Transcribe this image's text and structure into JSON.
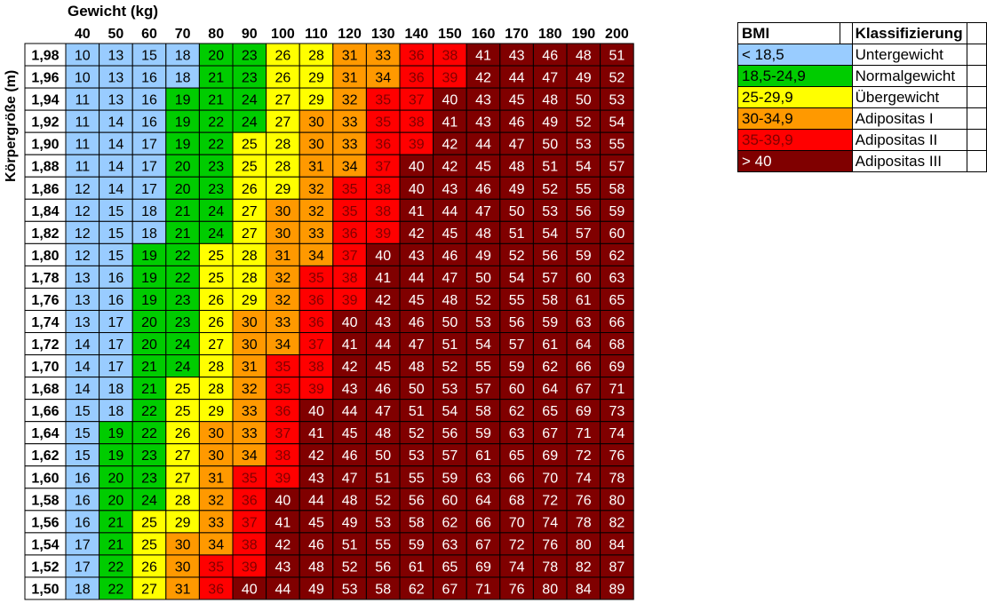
{
  "chart_data": {
    "type": "heatmap",
    "xlabel": "Gewicht (kg)",
    "ylabel": "Körpergröße (m)",
    "x": [
      40,
      50,
      60,
      70,
      80,
      90,
      100,
      110,
      120,
      130,
      140,
      150,
      160,
      170,
      180,
      190,
      200
    ],
    "y": [
      "1,98",
      "1,96",
      "1,94",
      "1,92",
      "1,90",
      "1,88",
      "1,86",
      "1,84",
      "1,82",
      "1,80",
      "1,78",
      "1,76",
      "1,74",
      "1,72",
      "1,70",
      "1,68",
      "1,66",
      "1,64",
      "1,62",
      "1,60",
      "1,58",
      "1,56",
      "1,54",
      "1,52",
      "1,50"
    ],
    "values": [
      [
        10,
        13,
        15,
        18,
        20,
        23,
        26,
        28,
        31,
        33,
        36,
        38,
        41,
        43,
        46,
        48,
        51
      ],
      [
        10,
        13,
        16,
        18,
        21,
        23,
        26,
        29,
        31,
        34,
        36,
        39,
        42,
        44,
        47,
        49,
        52
      ],
      [
        11,
        13,
        16,
        19,
        21,
        24,
        27,
        29,
        32,
        35,
        37,
        40,
        43,
        45,
        48,
        50,
        53
      ],
      [
        11,
        14,
        16,
        19,
        22,
        24,
        27,
        30,
        33,
        35,
        38,
        41,
        43,
        46,
        49,
        52,
        54
      ],
      [
        11,
        14,
        17,
        19,
        22,
        25,
        28,
        30,
        33,
        36,
        39,
        42,
        44,
        47,
        50,
        53,
        55
      ],
      [
        11,
        14,
        17,
        20,
        23,
        25,
        28,
        31,
        34,
        37,
        40,
        42,
        45,
        48,
        51,
        54,
        57
      ],
      [
        12,
        14,
        17,
        20,
        23,
        26,
        29,
        32,
        35,
        38,
        40,
        43,
        46,
        49,
        52,
        55,
        58
      ],
      [
        12,
        15,
        18,
        21,
        24,
        27,
        30,
        32,
        35,
        38,
        41,
        44,
        47,
        50,
        53,
        56,
        59
      ],
      [
        12,
        15,
        18,
        21,
        24,
        27,
        30,
        33,
        36,
        39,
        42,
        45,
        48,
        51,
        54,
        57,
        60
      ],
      [
        12,
        15,
        19,
        22,
        25,
        28,
        31,
        34,
        37,
        40,
        43,
        46,
        49,
        52,
        56,
        59,
        62
      ],
      [
        13,
        16,
        19,
        22,
        25,
        28,
        32,
        35,
        38,
        41,
        44,
        47,
        50,
        54,
        57,
        60,
        63
      ],
      [
        13,
        16,
        19,
        23,
        26,
        29,
        32,
        36,
        39,
        42,
        45,
        48,
        52,
        55,
        58,
        61,
        65
      ],
      [
        13,
        17,
        20,
        23,
        26,
        30,
        33,
        36,
        40,
        43,
        46,
        50,
        53,
        56,
        59,
        63,
        66
      ],
      [
        14,
        17,
        20,
        24,
        27,
        30,
        34,
        37,
        41,
        44,
        47,
        51,
        54,
        57,
        61,
        64,
        68
      ],
      [
        14,
        17,
        21,
        24,
        28,
        31,
        35,
        38,
        42,
        45,
        48,
        52,
        55,
        59,
        62,
        66,
        69
      ],
      [
        14,
        18,
        21,
        25,
        28,
        32,
        35,
        39,
        43,
        46,
        50,
        53,
        57,
        60,
        64,
        67,
        71
      ],
      [
        15,
        18,
        22,
        25,
        29,
        33,
        36,
        40,
        44,
        47,
        51,
        54,
        58,
        62,
        65,
        69,
        73
      ],
      [
        15,
        19,
        22,
        26,
        30,
        33,
        37,
        41,
        45,
        48,
        52,
        56,
        59,
        63,
        67,
        71,
        74
      ],
      [
        15,
        19,
        23,
        27,
        30,
        34,
        38,
        42,
        46,
        50,
        53,
        57,
        61,
        65,
        69,
        72,
        76
      ],
      [
        16,
        20,
        23,
        27,
        31,
        35,
        39,
        43,
        47,
        51,
        55,
        59,
        63,
        66,
        70,
        74,
        78
      ],
      [
        16,
        20,
        24,
        28,
        32,
        36,
        40,
        44,
        48,
        52,
        56,
        60,
        64,
        68,
        72,
        76,
        80
      ],
      [
        16,
        21,
        25,
        29,
        33,
        37,
        41,
        45,
        49,
        53,
        58,
        62,
        66,
        70,
        74,
        78,
        82
      ],
      [
        17,
        21,
        25,
        30,
        34,
        38,
        42,
        46,
        51,
        55,
        59,
        63,
        67,
        72,
        76,
        80,
        84
      ],
      [
        17,
        22,
        26,
        30,
        35,
        39,
        43,
        48,
        52,
        56,
        61,
        65,
        69,
        74,
        78,
        82,
        87
      ],
      [
        18,
        22,
        27,
        31,
        36,
        40,
        44,
        49,
        53,
        58,
        62,
        67,
        71,
        76,
        80,
        84,
        89
      ]
    ],
    "legend": {
      "headers": [
        "BMI",
        "Klassifizierung"
      ],
      "classes": [
        {
          "range": "< 18,5",
          "label": "Untergewicht",
          "color": "#99CCFF",
          "text_color": "#000000",
          "max": 18.5
        },
        {
          "range": "18,5-24,9",
          "label": "Normalgewicht",
          "color": "#00CC00",
          "text_color": "#000000",
          "max": 25
        },
        {
          "range": "25-29,9",
          "label": "Übergewicht",
          "color": "#FFFF00",
          "text_color": "#000000",
          "max": 30
        },
        {
          "range": "30-34,9",
          "label": "Adipositas I",
          "color": "#FF9900",
          "text_color": "#000000",
          "max": 35
        },
        {
          "range": "35-39,9",
          "label": "Adipositas II",
          "color": "#FF0000",
          "text_color": "#800000",
          "max": 40
        },
        {
          "range": "> 40",
          "label": "Adipositas III",
          "color": "#800000",
          "text_color": "#FFFFFF",
          "max": 1000
        }
      ]
    }
  }
}
